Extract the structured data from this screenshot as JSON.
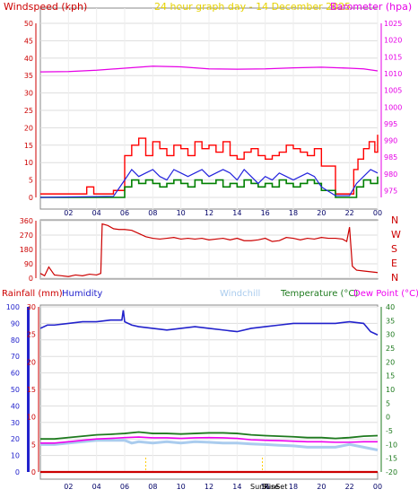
{
  "header": {
    "wind_label": "Windspeed (kph)",
    "center_title": "24 hour graph day - 14 December 2025",
    "baro_label": "Barometer (hpa)"
  },
  "colors": {
    "wind_gust": "#ff0000",
    "wind_avg": "#2222dd",
    "wind_green": "#008000",
    "baro": "#e600e6",
    "winddir": "#cc0000",
    "rain": "#cc0000",
    "humidity": "#2222cc",
    "windchill": "#aaccee",
    "temperature": "#1e7a1e",
    "dewpoint": "#ee00ee",
    "sun": "#ffcc00"
  },
  "compass": [
    "N",
    "W",
    "S",
    "E",
    "N"
  ],
  "bottom_header": {
    "rain_label": "Rainfall (mm)",
    "humidity_label": "Humidity",
    "windchill_label": "Windchill",
    "temperature_label": "Temperature (°C)",
    "dewpoint_label": "Dew Point (°C)"
  },
  "sun_labels": {
    "sunrise": "SunRise",
    "sunset": "SunSet"
  },
  "chart_data": [
    {
      "id": "wind",
      "type": "line",
      "x_ticks": [
        "02",
        "04",
        "06",
        "08",
        "10",
        "12",
        "14",
        "16",
        "18",
        "20",
        "22",
        "00"
      ],
      "y_left_ticks": [
        0,
        5,
        10,
        15,
        20,
        25,
        30,
        35,
        40,
        45,
        50
      ],
      "y_left_lim": [
        0,
        50
      ],
      "y_right_ticks": [
        975,
        980,
        985,
        990,
        995,
        1000,
        1005,
        1010,
        1015,
        1020,
        1025
      ],
      "y_right_lim": [
        973,
        1025
      ],
      "series": [
        {
          "name": "Windspeed (kph)",
          "hours": [
            0,
            3,
            3.3,
            3.8,
            4.6,
            5.2,
            6.0,
            6.5,
            7.0,
            7.5,
            8.0,
            8.5,
            9.0,
            9.5,
            10.0,
            10.5,
            11.0,
            11.5,
            12.0,
            12.5,
            13.0,
            13.5,
            14.0,
            14.5,
            15.0,
            15.5,
            16.0,
            16.5,
            17.0,
            17.5,
            18.0,
            18.5,
            19.0,
            19.5,
            20.0,
            21.0,
            22.0,
            22.3,
            22.6,
            23.0,
            23.4,
            23.8,
            24.0
          ],
          "values": [
            1,
            1,
            3,
            1,
            1,
            2,
            12,
            15,
            17,
            12,
            16,
            14,
            12,
            15,
            14,
            12,
            16,
            14,
            15,
            13,
            16,
            12,
            11,
            13,
            14,
            12,
            11,
            12,
            13,
            15,
            14,
            13,
            12,
            14,
            9,
            1,
            1,
            8,
            11,
            14,
            16,
            13,
            18
          ]
        },
        {
          "name": "Average speed",
          "hours": [
            0,
            5.2,
            6.0,
            6.5,
            7.0,
            7.5,
            8.0,
            8.5,
            9.0,
            9.5,
            10.0,
            10.5,
            11.0,
            11.5,
            12.0,
            12.5,
            13.0,
            13.5,
            14.0,
            14.5,
            15.0,
            15.5,
            16.0,
            16.5,
            17.0,
            17.5,
            18.0,
            18.5,
            19.0,
            19.5,
            20.0,
            21.0,
            22.0,
            22.5,
            23.0,
            23.5,
            24.0
          ],
          "values": [
            0,
            0.3,
            5,
            8,
            6,
            7,
            8,
            6,
            5,
            8,
            7,
            6,
            7,
            8,
            6,
            7,
            8,
            7,
            5,
            8,
            6,
            4,
            6,
            5,
            7,
            6,
            5,
            6,
            7,
            6,
            3,
            0.5,
            0.5,
            4,
            6,
            8,
            7
          ]
        },
        {
          "name": "Wind (green)",
          "hours": [
            0,
            5.2,
            6.0,
            6.5,
            7.0,
            7.5,
            8.0,
            8.5,
            9.0,
            9.5,
            10.0,
            10.5,
            11.0,
            11.5,
            12.0,
            12.5,
            13.0,
            13.5,
            14.0,
            14.5,
            15.0,
            15.5,
            16.0,
            16.5,
            17.0,
            17.5,
            18.0,
            18.5,
            19.0,
            19.5,
            20.0,
            21.0,
            22.0,
            22.5,
            23.0,
            23.5,
            24.0
          ],
          "values": [
            0,
            0,
            3,
            5,
            4,
            5,
            4,
            3,
            4,
            5,
            4,
            3,
            5,
            4,
            4,
            5,
            3,
            4,
            3,
            5,
            4,
            3,
            4,
            3,
            5,
            4,
            3,
            4,
            5,
            4,
            2,
            0,
            0,
            3,
            5,
            4,
            6
          ]
        },
        {
          "name": "Barometer (hpa)",
          "axis": "right",
          "hours": [
            0,
            2,
            4,
            6,
            8,
            10,
            12,
            14,
            16,
            18,
            20,
            22,
            23,
            24
          ],
          "values": [
            1010.5,
            1010.6,
            1011.0,
            1011.6,
            1012.2,
            1012.0,
            1011.4,
            1011.3,
            1011.4,
            1011.7,
            1011.9,
            1011.6,
            1011.4,
            1010.8
          ]
        }
      ]
    },
    {
      "id": "winddir",
      "type": "line",
      "y_ticks": [
        0,
        90,
        180,
        270,
        360
      ],
      "y_lim": [
        0,
        360
      ],
      "series": [
        {
          "name": "Wind direction",
          "hours": [
            0,
            0.3,
            0.6,
            1.0,
            1.5,
            2.0,
            2.5,
            3.0,
            3.5,
            4.0,
            4.3,
            4.4,
            4.8,
            5.2,
            5.6,
            6.0,
            6.5,
            7.0,
            7.5,
            8.0,
            8.5,
            9.0,
            9.5,
            10.0,
            10.5,
            11.0,
            11.5,
            12.0,
            12.5,
            13.0,
            13.5,
            14.0,
            14.5,
            15.0,
            15.5,
            16.0,
            16.5,
            17.0,
            17.5,
            18.0,
            18.5,
            19.0,
            19.5,
            20.0,
            20.5,
            21.0,
            21.5,
            21.8,
            22.0,
            22.2,
            22.5,
            23.0,
            23.5,
            24.0
          ],
          "values": [
            30,
            15,
            70,
            20,
            15,
            10,
            20,
            15,
            25,
            20,
            30,
            340,
            330,
            310,
            305,
            305,
            300,
            280,
            260,
            250,
            245,
            250,
            255,
            245,
            250,
            245,
            250,
            240,
            245,
            250,
            240,
            250,
            235,
            235,
            240,
            250,
            230,
            235,
            255,
            250,
            240,
            250,
            245,
            255,
            250,
            250,
            245,
            230,
            320,
            75,
            50,
            45,
            40,
            35
          ]
        }
      ]
    },
    {
      "id": "temperature",
      "type": "line",
      "x_ticks": [
        "02",
        "04",
        "06",
        "08",
        "10",
        "12",
        "14",
        "16",
        "18",
        "20",
        "22",
        "00"
      ],
      "y_humidity_ticks": [
        0,
        10,
        20,
        30,
        40,
        50,
        60,
        70,
        80,
        90,
        100
      ],
      "y_humidity_lim": [
        0,
        100
      ],
      "y_rain_ticks": [
        0,
        5,
        10,
        15,
        20,
        25,
        30
      ],
      "y_rain_lim": [
        0,
        30
      ],
      "y_temp_ticks": [
        -20,
        -15,
        -10,
        -5,
        0,
        5,
        10,
        15,
        20,
        25,
        30,
        35,
        40
      ],
      "y_temp_lim": [
        -20,
        40
      ],
      "series": [
        {
          "name": "Humidity",
          "hours": [
            0,
            0.5,
            1.0,
            2.0,
            3.0,
            4.0,
            5.0,
            5.8,
            5.9,
            6.0,
            6.5,
            7.0,
            8.0,
            9.0,
            10.0,
            11.0,
            12.0,
            13.0,
            14.0,
            15.0,
            16.0,
            17.0,
            18.0,
            19.0,
            20.0,
            21.0,
            22.0,
            23.0,
            23.5,
            24.0
          ],
          "values": [
            87,
            89,
            89,
            90,
            91,
            91,
            92,
            92,
            98,
            91,
            89,
            88,
            87,
            86,
            87,
            88,
            87,
            86,
            85,
            87,
            88,
            89,
            90,
            90,
            90,
            90,
            91,
            90,
            85,
            83
          ]
        },
        {
          "name": "Temperature (°C)",
          "hours": [
            0,
            1,
            2,
            3,
            4,
            5,
            6,
            7,
            8,
            9,
            10,
            11,
            12,
            13,
            14,
            15,
            16,
            17,
            18,
            19,
            20,
            21,
            22,
            23,
            24
          ],
          "values": [
            -8.0,
            -8.0,
            -7.5,
            -7.0,
            -6.5,
            -6.3,
            -6.0,
            -5.5,
            -6.0,
            -6.0,
            -6.2,
            -6.0,
            -5.8,
            -5.8,
            -6.0,
            -6.5,
            -6.8,
            -7.0,
            -7.2,
            -7.5,
            -7.5,
            -7.8,
            -7.5,
            -7.0,
            -6.8
          ]
        },
        {
          "name": "Dew Point (°C)",
          "hours": [
            0,
            1,
            2,
            3,
            4,
            5,
            6,
            7,
            8,
            9,
            10,
            11,
            12,
            13,
            14,
            15,
            16,
            17,
            18,
            19,
            20,
            21,
            22,
            23,
            24
          ],
          "values": [
            -9.5,
            -9.5,
            -9.0,
            -8.5,
            -8.0,
            -7.8,
            -7.5,
            -7.3,
            -7.6,
            -7.6,
            -7.8,
            -7.6,
            -7.5,
            -7.6,
            -7.8,
            -8.3,
            -8.5,
            -8.6,
            -8.8,
            -9.0,
            -9.0,
            -9.2,
            -9.2,
            -9.0,
            -9.0
          ]
        },
        {
          "name": "Windchill",
          "hours": [
            0,
            1,
            2,
            3,
            4,
            5,
            6,
            6.5,
            7,
            8,
            9,
            10,
            11,
            12,
            13,
            14,
            15,
            16,
            17,
            18,
            19,
            20,
            21,
            22,
            23,
            24
          ],
          "values": [
            -10,
            -10,
            -9.5,
            -9,
            -8.5,
            -8.5,
            -8.5,
            -9.5,
            -9,
            -9.5,
            -9,
            -9.5,
            -9,
            -9.2,
            -9.5,
            -9.5,
            -9.8,
            -10,
            -10.3,
            -10.5,
            -11,
            -11,
            -11,
            -10,
            -11,
            -12
          ]
        },
        {
          "name": "Rainfall (mm)",
          "hours": [
            0,
            24
          ],
          "values": [
            0,
            0
          ]
        }
      ],
      "sun_events_hours": [
        7.5,
        15.8
      ]
    }
  ]
}
